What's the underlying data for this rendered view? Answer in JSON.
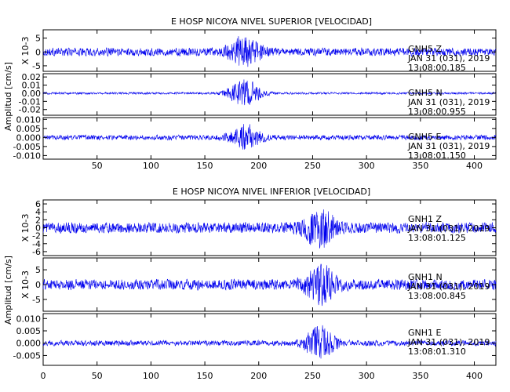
{
  "chart_data": [
    {
      "type": "line",
      "title": "E HOSP NICOYA NIVEL SUPERIOR [VELOCIDAD]",
      "ylabel": "Amplitud [cm/s]",
      "xlabel": "",
      "xlim": [
        0,
        420
      ],
      "x_ticks": [
        50,
        100,
        150,
        200,
        250,
        300,
        350,
        400
      ],
      "event_center": 187,
      "traces": [
        {
          "scale_label": "X 10-3",
          "ylim": [
            -7,
            8
          ],
          "y_ticks": [
            {
              "v": 5,
              "label": "5"
            },
            {
              "v": 0,
              "label": "0"
            },
            {
              "v": -5,
              "label": "-5"
            }
          ],
          "noise_amp": 1.6,
          "peak_amp": 7.5,
          "annotation_lines": [
            "GNH5   Z",
            "JAN 31 (031), 2019",
            "13:08:00.185"
          ]
        },
        {
          "scale_label": "",
          "ylim": [
            -0.027,
            0.024
          ],
          "y_ticks": [
            {
              "v": 0.02,
              "label": "0.02"
            },
            {
              "v": 0.01,
              "label": "0.01"
            },
            {
              "v": 0.0,
              "label": "0.00"
            },
            {
              "v": -0.01,
              "label": "-0.01"
            },
            {
              "v": -0.02,
              "label": "-0.02"
            }
          ],
          "noise_amp": 0.0015,
          "peak_amp": 0.021,
          "annotation_lines": [
            "GNH5   N",
            "JAN 31 (031), 2019",
            "13:08:00.955"
          ]
        },
        {
          "scale_label": "",
          "ylim": [
            -0.012,
            0.011
          ],
          "y_ticks": [
            {
              "v": 0.01,
              "label": "0.010"
            },
            {
              "v": 0.005,
              "label": "0.005"
            },
            {
              "v": 0.0,
              "label": "0.000"
            },
            {
              "v": -0.005,
              "label": "-0.005"
            },
            {
              "v": -0.01,
              "label": "-0.010"
            }
          ],
          "noise_amp": 0.0015,
          "peak_amp": 0.009,
          "annotation_lines": [
            "GNH5   E",
            "JAN 31 (031), 2019",
            "13:08:01.150"
          ]
        }
      ]
    },
    {
      "type": "line",
      "title": "E HOSP NICOYA NIVEL INFERIOR [VELOCIDAD]",
      "ylabel": "Amplitud [cm/s]",
      "xlabel": "",
      "xlim": [
        0,
        420
      ],
      "x_ticks": [
        0,
        50,
        100,
        150,
        200,
        250,
        300,
        350,
        400
      ],
      "event_center": 257,
      "traces": [
        {
          "scale_label": "X 10-3",
          "ylim": [
            -7,
            7
          ],
          "y_ticks": [
            {
              "v": 6,
              "label": "6"
            },
            {
              "v": 4,
              "label": "4"
            },
            {
              "v": 2,
              "label": "2"
            },
            {
              "v": 0,
              "label": "0"
            },
            {
              "v": -2,
              "label": "-2"
            },
            {
              "v": -4,
              "label": "-4"
            },
            {
              "v": -6,
              "label": "-6"
            }
          ],
          "noise_amp": 1.5,
          "peak_amp": 6.5,
          "annotation_lines": [
            "GNH1   Z",
            "JAN 31 (031), 2019",
            "13:08:01.125"
          ]
        },
        {
          "scale_label": "X 10-3",
          "ylim": [
            -9,
            9
          ],
          "y_ticks": [
            {
              "v": 5,
              "label": "5"
            },
            {
              "v": 0,
              "label": "0"
            },
            {
              "v": -5,
              "label": "-5"
            }
          ],
          "noise_amp": 2.0,
          "peak_amp": 8.5,
          "annotation_lines": [
            "GNH1   N",
            "JAN 31 (031), 2019",
            "13:08:00.845"
          ]
        },
        {
          "scale_label": "",
          "ylim": [
            -0.009,
            0.012
          ],
          "y_ticks": [
            {
              "v": 0.01,
              "label": "0.010"
            },
            {
              "v": 0.005,
              "label": "0.005"
            },
            {
              "v": 0.0,
              "label": "0.000"
            },
            {
              "v": -0.005,
              "label": "-0.005"
            }
          ],
          "noise_amp": 0.0012,
          "peak_amp": 0.008,
          "annotation_lines": [
            "GNH1   E",
            "JAN 31 (031), 2019",
            "13:08:01.310"
          ]
        }
      ]
    }
  ],
  "colors": {
    "trace": "#0000ee",
    "axis": "#000000",
    "background": "#ffffff"
  }
}
